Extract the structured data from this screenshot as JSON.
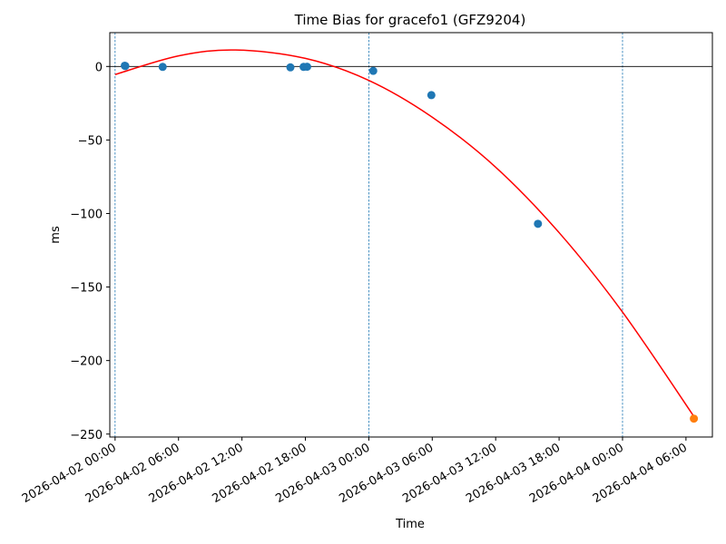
{
  "chart_data": {
    "type": "scatter",
    "title": "Time Bias for gracefo1 (GFZ9204)",
    "xlabel": "Time",
    "ylabel": "ms",
    "xlim": [
      "2026-04-01 23:30",
      "2026-04-04 08:30"
    ],
    "ylim": [
      -252,
      23
    ],
    "x_ticks": [
      "2026-04-02 00:00",
      "2026-04-02 06:00",
      "2026-04-02 12:00",
      "2026-04-02 18:00",
      "2026-04-03 00:00",
      "2026-04-03 06:00",
      "2026-04-03 12:00",
      "2026-04-03 18:00",
      "2026-04-04 00:00",
      "2026-04-04 06:00"
    ],
    "y_ticks": [
      0,
      -50,
      -100,
      -150,
      -200,
      -250
    ],
    "y_tick_labels": [
      "0",
      "−50",
      "−100",
      "−150",
      "−200",
      "−250"
    ],
    "zero_line": 0,
    "vertical_lines": [
      "2026-04-02 00:00",
      "2026-04-03 00:00",
      "2026-04-04 00:00"
    ],
    "series": [
      {
        "color": "#1f77b4",
        "points": [
          {
            "x": "2026-04-02 00:55",
            "y": 0.5
          },
          {
            "x": "2026-04-02 00:58",
            "y": 0.3
          },
          {
            "x": "2026-04-02 04:30",
            "y": -0.3
          },
          {
            "x": "2026-04-02 16:35",
            "y": -0.6
          },
          {
            "x": "2026-04-02 17:50",
            "y": -0.3
          },
          {
            "x": "2026-04-02 18:10",
            "y": -0.2
          },
          {
            "x": "2026-04-03 00:25",
            "y": -3
          },
          {
            "x": "2026-04-03 05:55",
            "y": -19.5
          },
          {
            "x": "2026-04-03 16:00",
            "y": -107
          }
        ]
      },
      {
        "color": "#ff7f0e",
        "points": [
          {
            "x": "2026-04-04 06:45",
            "y": -239.5
          }
        ]
      }
    ],
    "fit": {
      "color": "#ff0000",
      "type": "quadratic",
      "points": [
        {
          "x": "2026-04-02 00:00",
          "y": -5.5
        },
        {
          "x": "2026-04-02 06:00",
          "y": 7.2
        },
        {
          "x": "2026-04-02 11:24",
          "y": 11.2
        },
        {
          "x": "2026-04-02 18:00",
          "y": 5.5
        },
        {
          "x": "2026-04-03 00:00",
          "y": -9.5
        },
        {
          "x": "2026-04-03 06:00",
          "y": -34.5
        },
        {
          "x": "2026-04-03 12:00",
          "y": -68.5
        },
        {
          "x": "2026-04-03 18:00",
          "y": -113
        },
        {
          "x": "2026-04-04 00:00",
          "y": -167
        },
        {
          "x": "2026-04-04 06:45",
          "y": -238
        }
      ]
    }
  }
}
